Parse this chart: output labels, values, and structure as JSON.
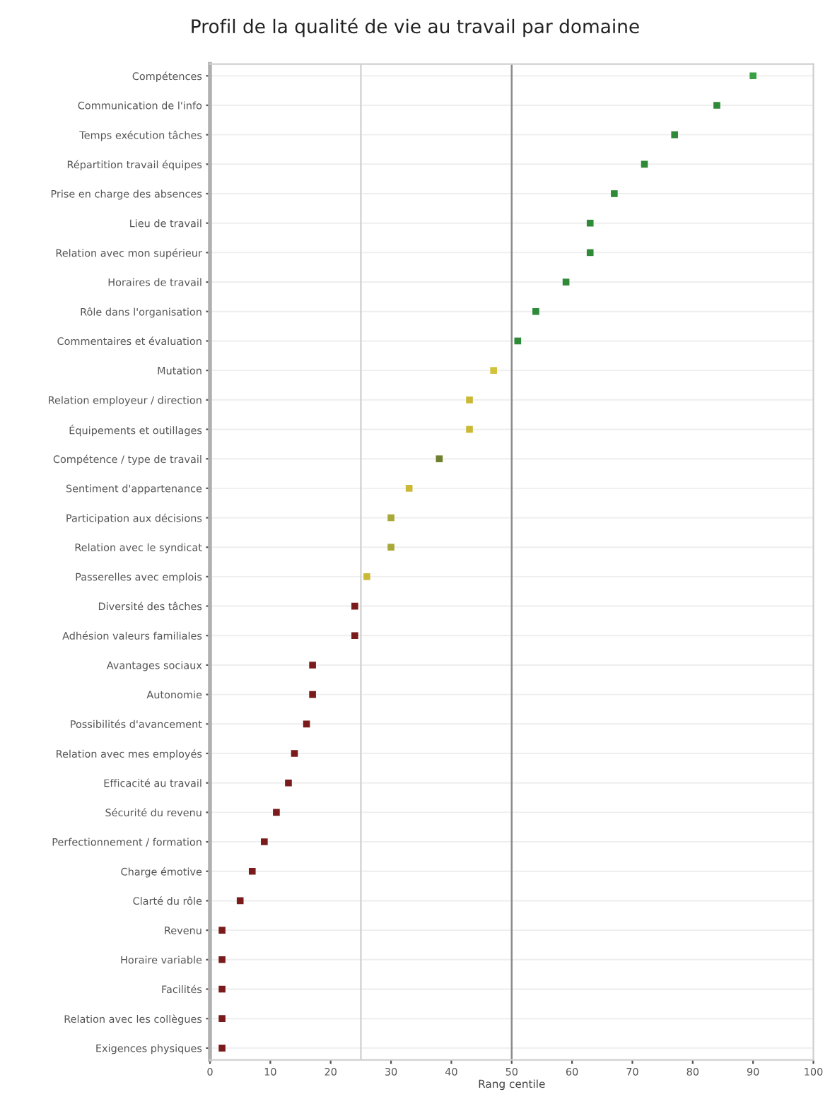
{
  "chart_data": {
    "type": "scatter",
    "orientation": "horizontal",
    "title": "Profil de la qualité de vie au travail par domaine",
    "xlabel": "Rang centile",
    "categories": [
      "Compétences",
      "Communication de l'info",
      "Temps exécution tâches",
      "Répartition travail équipes",
      "Prise en charge des absences",
      "Lieu de travail",
      "Relation avec mon supérieur",
      "Horaires de travail",
      "Rôle dans l'organisation",
      "Commentaires et évaluation",
      "Mutation",
      "Relation employeur / direction",
      "Équipements et outillages",
      "Compétence / type de travail",
      "Sentiment d'appartenance",
      "Participation aux décisions",
      "Relation avec le syndicat",
      "Passerelles avec emplois",
      "Diversité des tâches",
      "Adhésion valeurs familiales",
      "Avantages sociaux",
      "Autonomie",
      "Possibilités d'avancement",
      "Relation avec mes employés",
      "Efficacité au travail",
      "Sécurité du revenu",
      "Perfectionnement / formation",
      "Charge émotive",
      "Clarté du rôle",
      "Revenu",
      "Horaire variable",
      "Facilités",
      "Relation avec les collègues",
      "Exigences physiques"
    ],
    "values": [
      90,
      84,
      77,
      72,
      67,
      63,
      63,
      59,
      54,
      51,
      47,
      43,
      43,
      38,
      33,
      30,
      30,
      26,
      24,
      24,
      17,
      17,
      16,
      14,
      13,
      11,
      9,
      7,
      5,
      2,
      2,
      2,
      2,
      2
    ],
    "colors": [
      "#3aa043",
      "#2f8a38",
      "#2f8a38",
      "#2f8a38",
      "#2f8a38",
      "#2f8a38",
      "#2f8a38",
      "#2f8a38",
      "#2f8a38",
      "#2f8a38",
      "#d2c23a",
      "#c9b934",
      "#c9b934",
      "#6e7f2e",
      "#c9b934",
      "#a9a93a",
      "#a9a93a",
      "#c9b934",
      "#7b1a1a",
      "#7b1a1a",
      "#7b1a1a",
      "#7b1a1a",
      "#7b1a1a",
      "#7b1a1a",
      "#7b1a1a",
      "#7b1a1a",
      "#7b1a1a",
      "#7b1a1a",
      "#7b1a1a",
      "#7b1a1a",
      "#7b1a1a",
      "#7b1a1a",
      "#7b1a1a",
      "#7b1a1a"
    ],
    "xlim": [
      0,
      100
    ],
    "xticks": [
      0,
      10,
      20,
      30,
      40,
      50,
      60,
      70,
      80,
      90,
      100
    ],
    "ref_lines": [
      {
        "axis": "x",
        "value": 25,
        "color": "#d4d4d4"
      },
      {
        "axis": "x",
        "value": 50,
        "color": "#8c8c8c"
      }
    ],
    "grid": "y",
    "marker": "square"
  }
}
